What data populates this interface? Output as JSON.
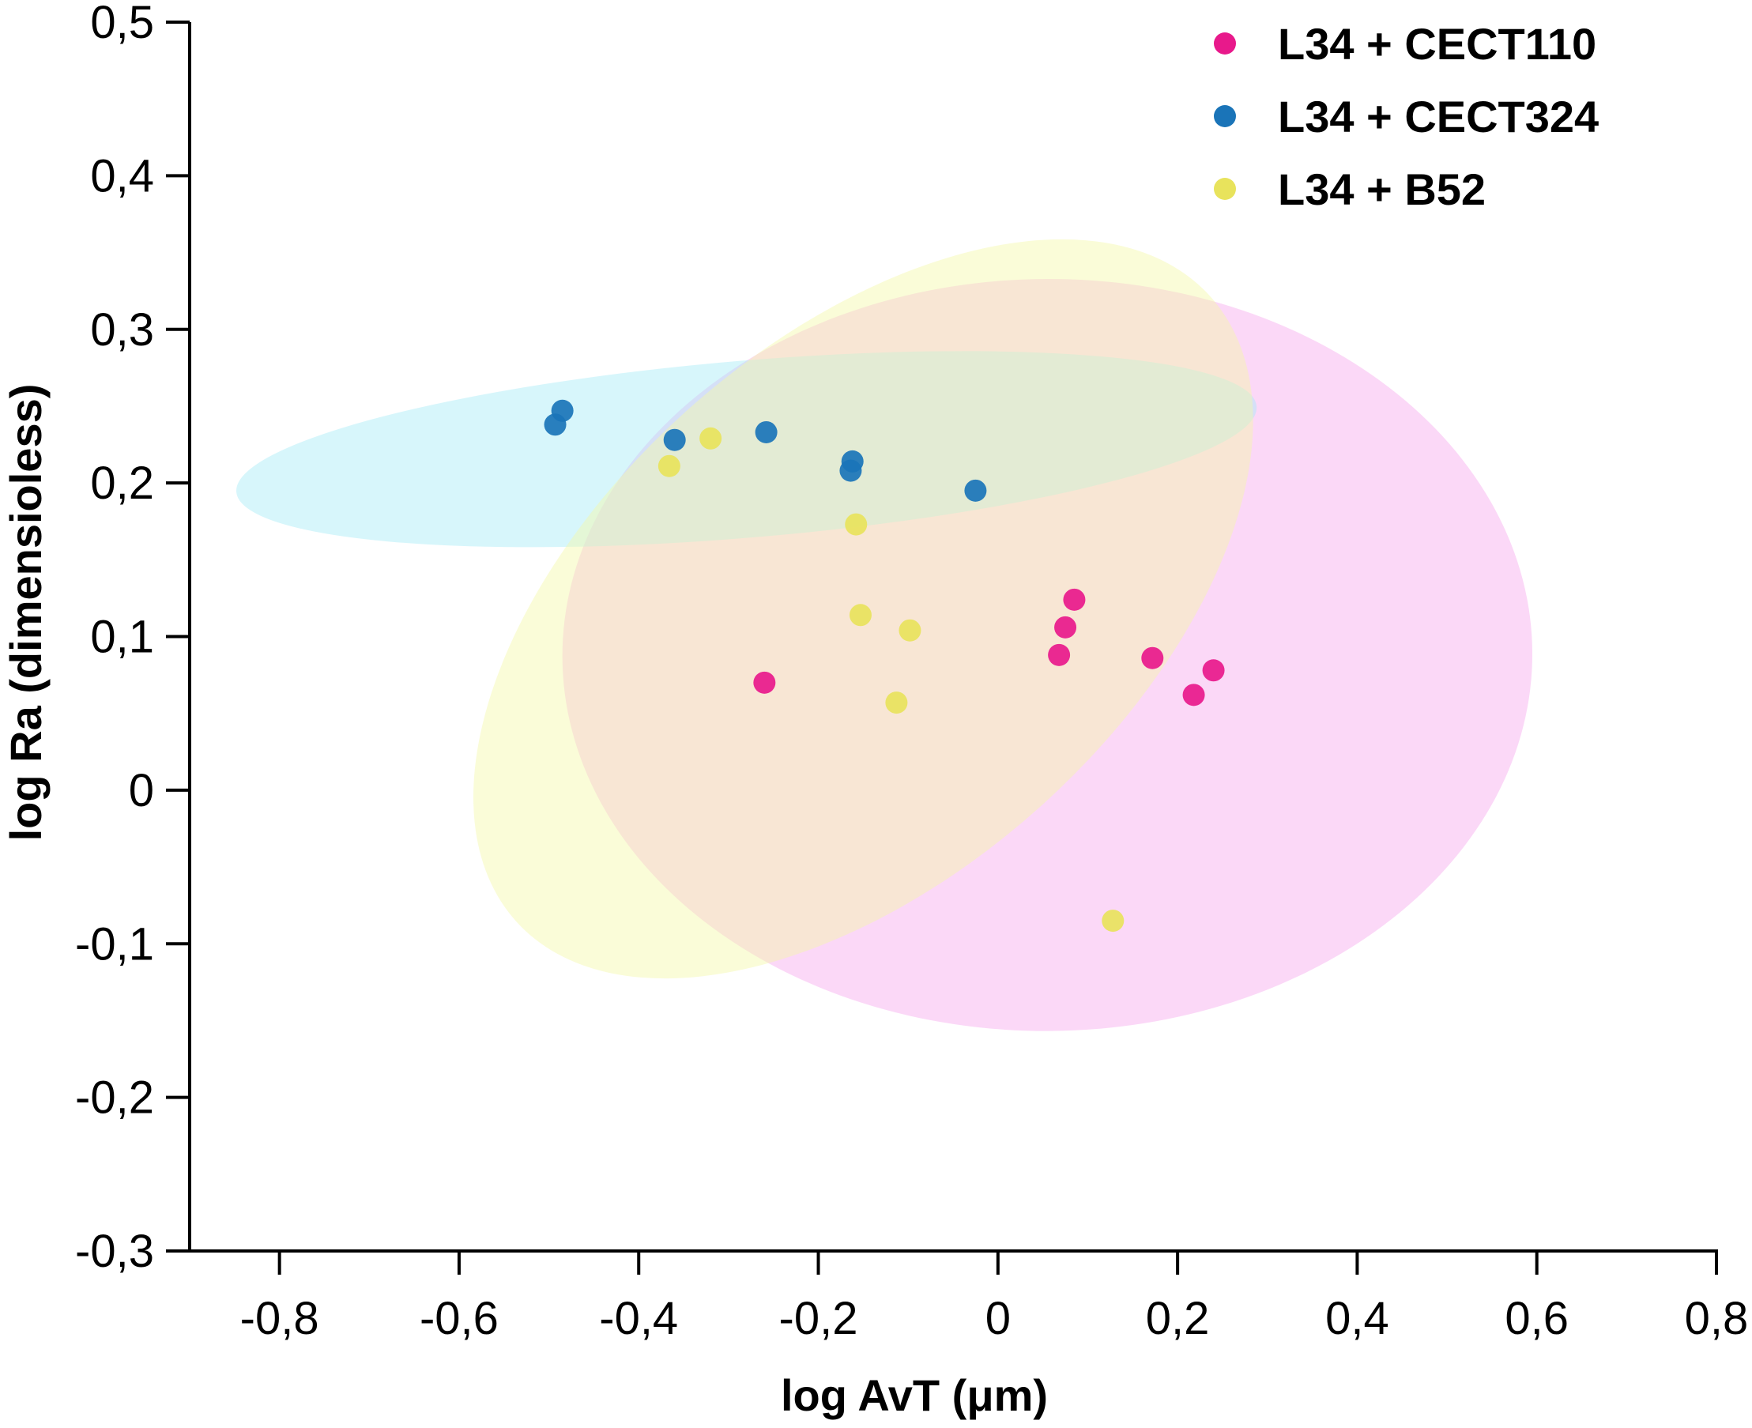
{
  "chart_data": {
    "type": "scatter",
    "xlabel": "log AvT (μm)",
    "ylabel": "log Ra (dimensioless)",
    "xlim": [
      -0.9,
      0.8
    ],
    "ylim": [
      -0.3,
      0.5
    ],
    "xticks": [
      -0.8,
      -0.6,
      -0.4,
      -0.2,
      0,
      0.2,
      0.4,
      0.6,
      0.8
    ],
    "xtick_labels": [
      "-0,8",
      "-0,6",
      "-0,4",
      "-0,2",
      "0",
      "0,2",
      "0,4",
      "0,6",
      "0,8"
    ],
    "yticks": [
      0.5,
      0.4,
      0.3,
      0.2,
      0.1,
      0,
      -0.1,
      -0.2,
      -0.3
    ],
    "ytick_labels": [
      "0,5",
      "0,4",
      "0,3",
      "0,2",
      "0,1",
      "0",
      "-0,1",
      "-0,2",
      "-0,3"
    ],
    "legend_position": "top-right",
    "series": [
      {
        "name": "L34 + CECT110",
        "color": "#e8198b",
        "ellipse_color": "#f7a8ee",
        "ellipse": {
          "cx": 0.055,
          "cy": 0.088,
          "rx": 0.54,
          "ry": 0.068,
          "angle": -0.3
        },
        "points": [
          {
            "x": -0.26,
            "y": 0.07
          },
          {
            "x": 0.085,
            "y": 0.124
          },
          {
            "x": 0.075,
            "y": 0.106
          },
          {
            "x": 0.068,
            "y": 0.088
          },
          {
            "x": 0.172,
            "y": 0.086
          },
          {
            "x": 0.24,
            "y": 0.078
          },
          {
            "x": 0.218,
            "y": 0.062
          }
        ]
      },
      {
        "name": "L34 + CECT324",
        "color": "#1a74b8",
        "ellipse_color": "#a6ecf7",
        "ellipse": {
          "cx": -0.28,
          "cy": 0.222,
          "rx": 0.57,
          "ry": 0.016,
          "angle": -4.8
        },
        "points": [
          {
            "x": -0.493,
            "y": 0.238
          },
          {
            "x": -0.485,
            "y": 0.247
          },
          {
            "x": -0.36,
            "y": 0.228
          },
          {
            "x": -0.258,
            "y": 0.233
          },
          {
            "x": -0.162,
            "y": 0.214
          },
          {
            "x": -0.164,
            "y": 0.208
          },
          {
            "x": -0.025,
            "y": 0.195
          }
        ]
      },
      {
        "name": "L34 + B52",
        "color": "#e8e35c",
        "ellipse_color": "#f5f9a8",
        "ellipse": {
          "cx": -0.15,
          "cy": 0.118,
          "rx": 0.52,
          "ry": 0.048,
          "angle": -42
        },
        "points": [
          {
            "x": -0.366,
            "y": 0.211
          },
          {
            "x": -0.32,
            "y": 0.229
          },
          {
            "x": -0.158,
            "y": 0.173
          },
          {
            "x": -0.153,
            "y": 0.114
          },
          {
            "x": -0.098,
            "y": 0.104
          },
          {
            "x": -0.113,
            "y": 0.057
          },
          {
            "x": 0.128,
            "y": -0.085
          }
        ]
      }
    ]
  }
}
